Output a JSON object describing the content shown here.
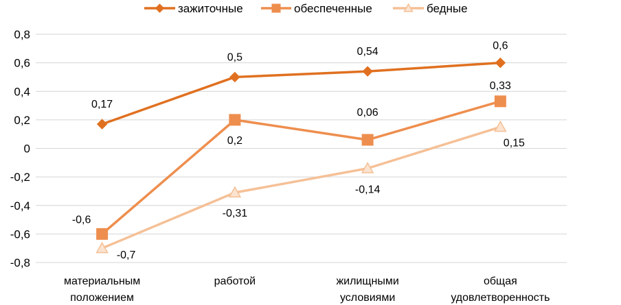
{
  "chart_data": {
    "type": "line",
    "title": "",
    "xlabel": "",
    "ylabel": "",
    "categories": [
      [
        "материальным",
        "положением"
      ],
      [
        "работой"
      ],
      [
        "жилищными",
        "условиями"
      ],
      [
        "общая",
        "удовлетворенность"
      ]
    ],
    "ylim": [
      -0.8,
      0.8
    ],
    "yticks": [
      0.8,
      0.6,
      0.4,
      0.2,
      0,
      -0.2,
      -0.4,
      -0.6,
      -0.8
    ],
    "ytick_labels": [
      "0,8",
      "0,6",
      "0,4",
      "0,2",
      "0",
      "-0,2",
      "-0,4",
      "-0,6",
      "-0,8"
    ],
    "grid": true,
    "legend_position": "top-center",
    "series": [
      {
        "name": "зажиточные",
        "marker": "diamond",
        "color": "#E07020",
        "values": [
          0.17,
          0.5,
          0.54,
          0.6
        ],
        "labels": [
          "0,17",
          "0,5",
          "0,54",
          "0,6"
        ]
      },
      {
        "name": "обеспеченные",
        "marker": "square",
        "color": "#EE8E4E",
        "values": [
          -0.6,
          0.2,
          0.06,
          0.33
        ],
        "labels": [
          "-0,6",
          "0,2",
          "0,06",
          "0,33"
        ]
      },
      {
        "name": "бедные",
        "marker": "triangle",
        "color": "#F5C096",
        "values": [
          -0.7,
          -0.31,
          -0.14,
          0.15
        ],
        "labels": [
          "-0,7",
          "-0,31",
          "-0,14",
          "0,15"
        ]
      }
    ]
  }
}
